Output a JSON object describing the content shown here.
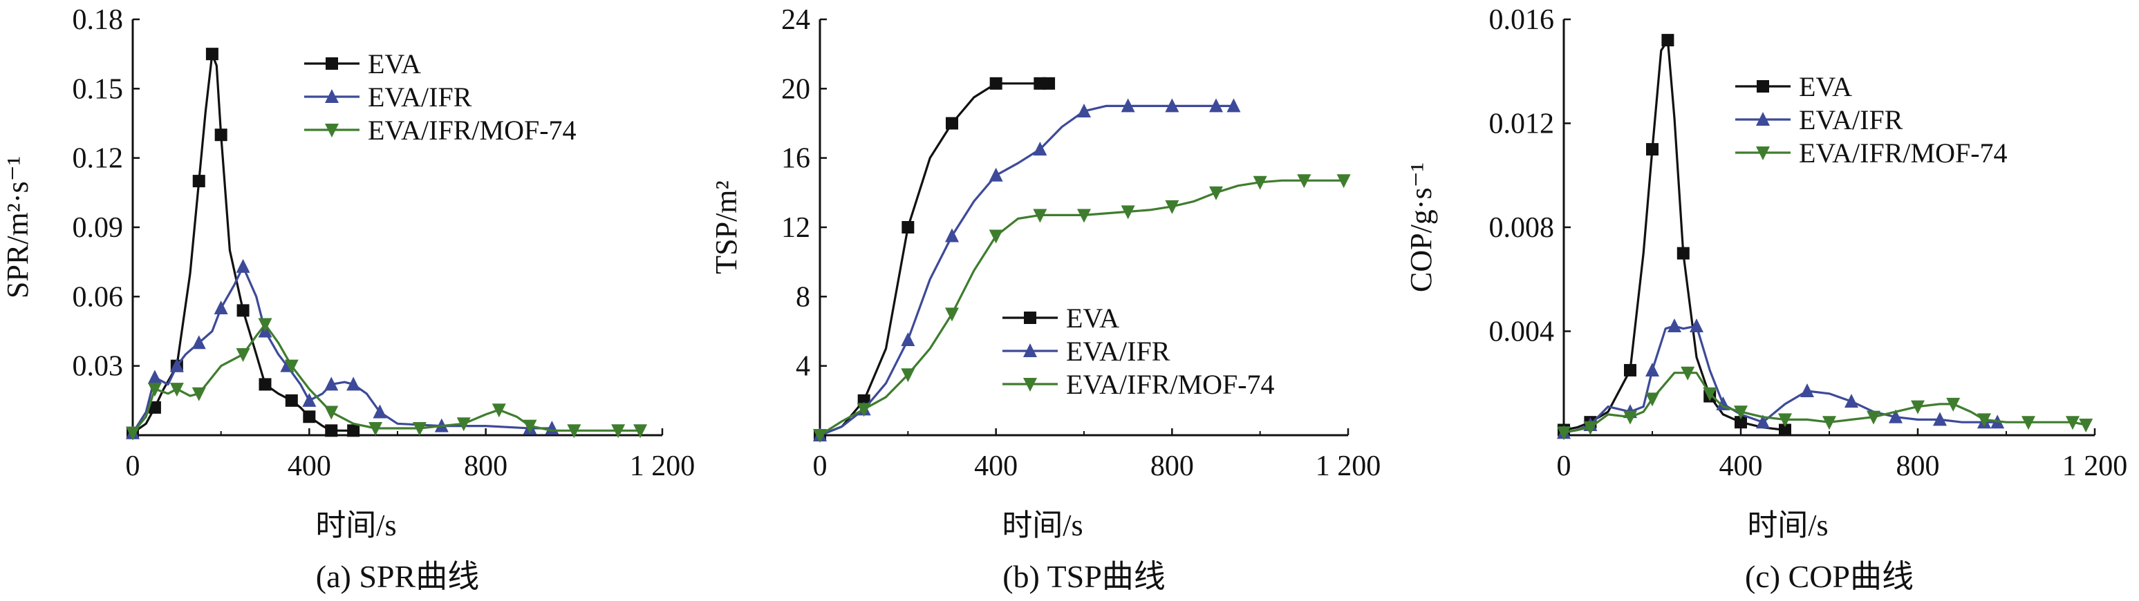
{
  "colors": {
    "EVA": "#111111",
    "EVA/IFR": "#3d4a99",
    "EVA/IFR/MOF-74": "#3f7d2e"
  },
  "markers": {
    "EVA": "square",
    "EVA/IFR": "triangle-up",
    "EVA/IFR/MOF-74": "triangle-down"
  },
  "chart_data": [
    {
      "type": "line",
      "caption": "(a) SPR曲线",
      "xlabel": "时间/s",
      "ylabel": "SPR/m²·s⁻¹",
      "xlim": [
        0,
        1200
      ],
      "ylim": [
        0,
        0.18
      ],
      "xticks": [
        0,
        400,
        800,
        1200
      ],
      "xtick_labels": [
        "0",
        "400",
        "800",
        "1 200"
      ],
      "yticks": [
        0.03,
        0.06,
        0.09,
        0.12,
        0.15,
        0.18
      ],
      "ytick_labels": [
        "0.03",
        "0.06",
        "0.09",
        "0.12",
        "0.15",
        "0.18"
      ],
      "legend_position": "top-right",
      "series": [
        {
          "name": "EVA",
          "x": [
            0,
            30,
            50,
            70,
            100,
            130,
            150,
            165,
            180,
            190,
            200,
            220,
            250,
            280,
            300,
            330,
            360,
            380,
            400,
            430,
            450,
            480,
            500
          ],
          "y": [
            0.001,
            0.005,
            0.012,
            0.02,
            0.03,
            0.07,
            0.11,
            0.14,
            0.165,
            0.16,
            0.13,
            0.08,
            0.054,
            0.035,
            0.022,
            0.018,
            0.015,
            0.012,
            0.008,
            0.004,
            0.002,
            0.002,
            0.002
          ]
        },
        {
          "name": "EVA/IFR",
          "x": [
            0,
            30,
            50,
            80,
            100,
            120,
            150,
            180,
            200,
            230,
            250,
            280,
            300,
            330,
            350,
            380,
            400,
            430,
            450,
            480,
            500,
            530,
            560,
            600,
            700,
            800,
            900,
            950
          ],
          "y": [
            0.001,
            0.01,
            0.025,
            0.022,
            0.03,
            0.035,
            0.04,
            0.045,
            0.055,
            0.065,
            0.073,
            0.06,
            0.045,
            0.035,
            0.03,
            0.022,
            0.015,
            0.018,
            0.022,
            0.023,
            0.022,
            0.018,
            0.01,
            0.005,
            0.004,
            0.004,
            0.003,
            0.003
          ]
        },
        {
          "name": "EVA/IFR/MOF-74",
          "x": [
            0,
            30,
            50,
            80,
            100,
            130,
            150,
            200,
            250,
            280,
            300,
            330,
            360,
            400,
            450,
            500,
            550,
            600,
            650,
            700,
            750,
            800,
            830,
            870,
            900,
            950,
            1000,
            1050,
            1100,
            1150
          ],
          "y": [
            0.001,
            0.008,
            0.02,
            0.018,
            0.02,
            0.017,
            0.018,
            0.03,
            0.035,
            0.043,
            0.048,
            0.04,
            0.03,
            0.02,
            0.01,
            0.005,
            0.003,
            0.003,
            0.003,
            0.004,
            0.005,
            0.009,
            0.011,
            0.008,
            0.004,
            0.002,
            0.002,
            0.002,
            0.002,
            0.002
          ]
        }
      ]
    },
    {
      "type": "line",
      "caption": "(b) TSP曲线",
      "xlabel": "时间/s",
      "ylabel": "TSP/m²",
      "xlim": [
        0,
        1200
      ],
      "ylim": [
        0,
        24
      ],
      "xticks": [
        0,
        400,
        800,
        1200
      ],
      "xtick_labels": [
        "0",
        "400",
        "800",
        "1 200"
      ],
      "yticks": [
        4,
        8,
        12,
        16,
        20,
        24
      ],
      "ytick_labels": [
        "4",
        "8",
        "12",
        "16",
        "20",
        "24"
      ],
      "legend_position": "bottom-right",
      "series": [
        {
          "name": "EVA",
          "x": [
            0,
            50,
            100,
            150,
            200,
            250,
            300,
            350,
            400,
            450,
            500,
            520
          ],
          "y": [
            0,
            0.5,
            2,
            5,
            12,
            16,
            18,
            19.5,
            20.3,
            20.3,
            20.3,
            20.3
          ]
        },
        {
          "name": "EVA/IFR",
          "x": [
            0,
            50,
            100,
            150,
            200,
            250,
            300,
            350,
            400,
            450,
            500,
            550,
            600,
            650,
            700,
            750,
            800,
            850,
            900,
            940
          ],
          "y": [
            0,
            0.5,
            1.5,
            3,
            5.5,
            9,
            11.5,
            13.5,
            15,
            15.7,
            16.5,
            17.8,
            18.7,
            19,
            19,
            19,
            19,
            19,
            19,
            19
          ]
        },
        {
          "name": "EVA/IFR/MOF-74",
          "x": [
            0,
            50,
            100,
            150,
            200,
            250,
            300,
            350,
            400,
            450,
            500,
            550,
            600,
            650,
            700,
            750,
            800,
            850,
            900,
            950,
            1000,
            1050,
            1100,
            1150,
            1190
          ],
          "y": [
            0,
            0.8,
            1.5,
            2.2,
            3.5,
            5,
            7,
            9.5,
            11.5,
            12.5,
            12.7,
            12.7,
            12.7,
            12.8,
            12.9,
            13,
            13.2,
            13.5,
            14,
            14.4,
            14.6,
            14.7,
            14.7,
            14.7,
            14.7
          ]
        }
      ]
    },
    {
      "type": "line",
      "caption": "(c) COP曲线",
      "xlabel": "时间/s",
      "ylabel": "COP/g·s⁻¹",
      "xlim": [
        0,
        1200
      ],
      "ylim": [
        0,
        0.016
      ],
      "xticks": [
        0,
        400,
        800,
        1200
      ],
      "xtick_labels": [
        "0",
        "400",
        "800",
        "1 200"
      ],
      "yticks": [
        0.004,
        0.008,
        0.012,
        0.016
      ],
      "ytick_labels": [
        "0.004",
        "0.008",
        "0.012",
        "0.016"
      ],
      "legend_position": "top-right",
      "series": [
        {
          "name": "EVA",
          "x": [
            0,
            30,
            60,
            100,
            150,
            180,
            200,
            220,
            235,
            250,
            270,
            300,
            330,
            360,
            400,
            450,
            500
          ],
          "y": [
            0.0002,
            0.0003,
            0.0005,
            0.0009,
            0.0025,
            0.007,
            0.011,
            0.0148,
            0.0152,
            0.0122,
            0.007,
            0.003,
            0.0015,
            0.0008,
            0.0005,
            0.0003,
            0.0002
          ]
        },
        {
          "name": "EVA/IFR",
          "x": [
            0,
            30,
            60,
            100,
            150,
            180,
            200,
            230,
            250,
            270,
            300,
            330,
            360,
            400,
            450,
            500,
            550,
            600,
            650,
            700,
            750,
            800,
            850,
            900,
            950,
            980
          ],
          "y": [
            0.0001,
            0.0002,
            0.0004,
            0.0011,
            0.0009,
            0.0011,
            0.0025,
            0.0041,
            0.0042,
            0.0041,
            0.0042,
            0.0025,
            0.0012,
            0.0008,
            0.0005,
            0.0012,
            0.0017,
            0.0016,
            0.0013,
            0.0009,
            0.0007,
            0.0006,
            0.0006,
            0.0005,
            0.0005,
            0.0005
          ]
        },
        {
          "name": "EVA/IFR/MOF-74",
          "x": [
            0,
            30,
            60,
            100,
            150,
            180,
            200,
            250,
            280,
            300,
            330,
            360,
            400,
            450,
            500,
            550,
            600,
            650,
            700,
            750,
            800,
            850,
            880,
            920,
            950,
            1000,
            1050,
            1100,
            1150,
            1180
          ],
          "y": [
            0.0001,
            0.0002,
            0.0003,
            0.0008,
            0.0007,
            0.0009,
            0.0014,
            0.0024,
            0.0024,
            0.0024,
            0.0016,
            0.0011,
            0.0009,
            0.0007,
            0.0006,
            0.0006,
            0.0005,
            0.0006,
            0.0007,
            0.0009,
            0.0011,
            0.0012,
            0.0012,
            0.0009,
            0.0006,
            0.0005,
            0.0005,
            0.0005,
            0.0005,
            0.0004
          ]
        }
      ]
    }
  ]
}
